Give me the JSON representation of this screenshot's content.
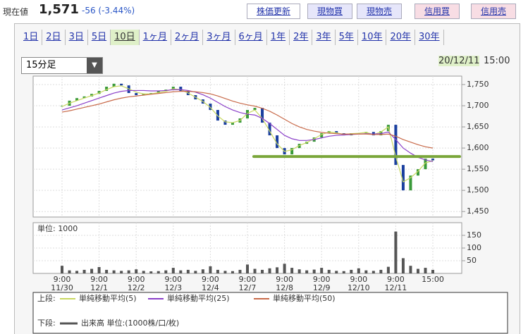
{
  "header": {
    "label": "現在値",
    "price": "1,571",
    "change": "-56 (-3.44%)",
    "buttons": [
      "株価更新",
      "現物買",
      "現物売",
      "信用買",
      "信用売"
    ]
  },
  "tabs": [
    "1日",
    "2日",
    "3日",
    "5日",
    "10日",
    "1ヶ月",
    "2ヶ月",
    "3ヶ月",
    "6ヶ月",
    "1年",
    "2年",
    "3年",
    "5年",
    "10年",
    "20年",
    "30年"
  ],
  "selected_tab": "10日",
  "interval": "15分足",
  "timestamp": {
    "date": "20/12/11",
    "time": "15:00"
  },
  "chart_data": {
    "type": "candlestick",
    "categories": [
      "9:00",
      null,
      null,
      null,
      null,
      "9:00",
      null,
      null,
      null,
      null,
      "9:00",
      null,
      null,
      null,
      null,
      "9:00",
      null,
      null,
      null,
      null,
      "9:00",
      null,
      null,
      null,
      null,
      "9:00",
      null,
      null,
      null,
      null,
      "9:00",
      null,
      null,
      null,
      null,
      "9:00",
      null,
      null,
      null,
      null,
      "9:00",
      null,
      null,
      null,
      null,
      "9:00",
      null,
      null,
      null,
      null,
      "15:00"
    ],
    "dates": [
      "11/30",
      null,
      null,
      null,
      null,
      "12/1",
      null,
      null,
      null,
      null,
      "12/2",
      null,
      null,
      null,
      null,
      "12/3",
      null,
      null,
      null,
      null,
      "12/4",
      null,
      null,
      null,
      null,
      "12/7",
      null,
      null,
      null,
      null,
      "12/8",
      null,
      null,
      null,
      null,
      "12/9",
      null,
      null,
      null,
      null,
      "12/10",
      null,
      null,
      null,
      null,
      "12/11",
      null,
      null,
      null,
      null,
      null
    ],
    "close": [
      1700,
      1712,
      1718,
      1722,
      1728,
      1735,
      1745,
      1752,
      1748,
      1730,
      1725,
      1728,
      1730,
      1735,
      1738,
      1745,
      1735,
      1725,
      1715,
      1705,
      1690,
      1665,
      1655,
      1660,
      1670,
      1690,
      1695,
      1660,
      1630,
      1600,
      1585,
      1600,
      1610,
      1615,
      1625,
      1635,
      1640,
      1635,
      1630,
      1635,
      1635,
      1638,
      1630,
      1640,
      1655,
      1560,
      1500,
      1535,
      1550,
      1575,
      1571
    ],
    "up_color": "#3a9a3a",
    "down_color": "#1a3f9f",
    "series": [
      {
        "name": "単純移動平均(5)",
        "color": "#c8d860",
        "values": [
          1698,
          1706,
          1712,
          1718,
          1724,
          1730,
          1738,
          1745,
          1747,
          1740,
          1732,
          1728,
          1728,
          1731,
          1734,
          1740,
          1738,
          1730,
          1720,
          1710,
          1696,
          1676,
          1662,
          1660,
          1665,
          1682,
          1690,
          1670,
          1640,
          1610,
          1592,
          1596,
          1606,
          1613,
          1622,
          1632,
          1638,
          1636,
          1632,
          1634,
          1635,
          1637,
          1632,
          1638,
          1650,
          1580,
          1520,
          1530,
          1545,
          1565,
          1570
        ]
      },
      {
        "name": "単純移動平均(25)",
        "color": "#8a3fc8",
        "values": [
          1690,
          1695,
          1700,
          1706,
          1712,
          1718,
          1724,
          1730,
          1734,
          1736,
          1736,
          1736,
          1735,
          1735,
          1736,
          1738,
          1738,
          1736,
          1732,
          1726,
          1718,
          1708,
          1698,
          1690,
          1684,
          1680,
          1678,
          1670,
          1658,
          1644,
          1630,
          1622,
          1618,
          1618,
          1620,
          1624,
          1628,
          1630,
          1631,
          1632,
          1633,
          1634,
          1633,
          1634,
          1638,
          1620,
          1600,
          1588,
          1578,
          1572,
          1568
        ]
      },
      {
        "name": "単純移動平均(50)",
        "color": "#c86a4a",
        "values": [
          1685,
          1688,
          1692,
          1696,
          1700,
          1704,
          1709,
          1714,
          1718,
          1721,
          1723,
          1725,
          1727,
          1729,
          1731,
          1733,
          1734,
          1734,
          1733,
          1731,
          1728,
          1723,
          1717,
          1711,
          1706,
          1702,
          1699,
          1694,
          1687,
          1678,
          1668,
          1658,
          1650,
          1644,
          1640,
          1637,
          1635,
          1634,
          1633,
          1633,
          1633,
          1633,
          1632,
          1632,
          1633,
          1628,
          1620,
          1614,
          1608,
          1603,
          1600
        ]
      }
    ],
    "ylim": [
      1437,
      1770
    ],
    "yticks": [
      {
        "value": 1450,
        "label": "1,450"
      },
      {
        "value": 1500,
        "label": "1,500"
      },
      {
        "value": 1550,
        "label": "1,550"
      },
      {
        "value": 1600,
        "label": "1,600"
      },
      {
        "value": 1650,
        "label": "1,650"
      },
      {
        "value": 1700,
        "label": "1,700"
      },
      {
        "value": 1750,
        "label": "1,750"
      }
    ],
    "hline": {
      "value": 1580,
      "color": "#7aa63a"
    },
    "volume": {
      "label": "単位: 1000",
      "name": "出来高 単位:(1000株/口/枚)",
      "color": "#555",
      "values": [
        30,
        12,
        10,
        14,
        18,
        25,
        14,
        12,
        10,
        12,
        16,
        10,
        8,
        9,
        12,
        22,
        12,
        14,
        10,
        16,
        28,
        14,
        10,
        9,
        14,
        35,
        18,
        14,
        20,
        24,
        38,
        22,
        16,
        12,
        15,
        22,
        14,
        10,
        9,
        14,
        20,
        12,
        10,
        14,
        26,
        165,
        60,
        30,
        18,
        22,
        14
      ],
      "ylim": [
        0,
        200
      ],
      "yticks": [
        50,
        100,
        150
      ]
    },
    "legend": {
      "upper": "上段:",
      "lower": "下段:"
    },
    "grid": true
  }
}
